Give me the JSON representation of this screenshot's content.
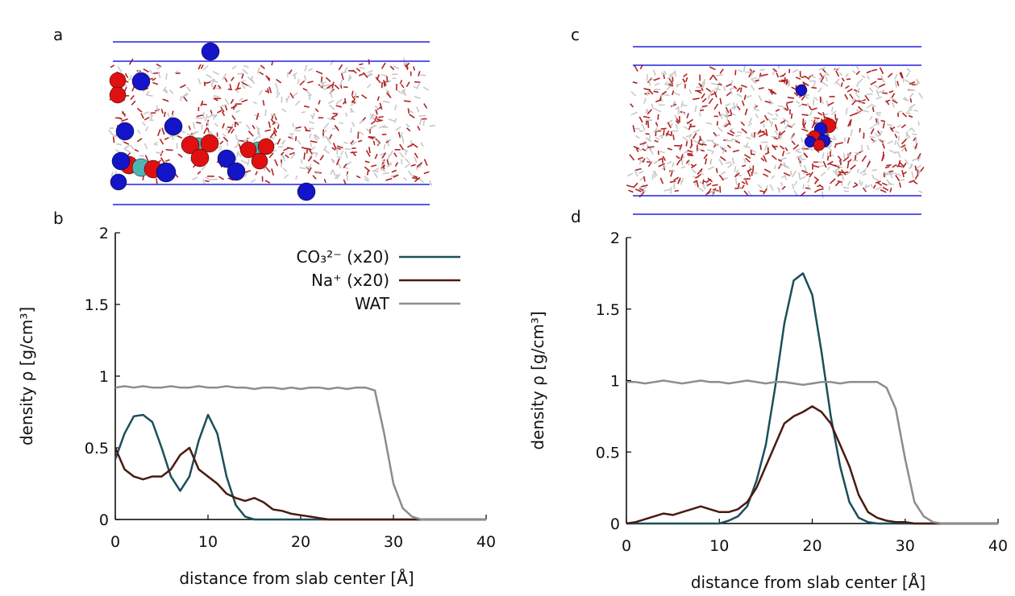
{
  "panel_labels": [
    "a",
    "b",
    "c",
    "d"
  ],
  "chart_data": [
    {
      "type": "line",
      "xlabel": "distance from slab center [Å]",
      "ylabel": "density ρ [g/cm³]",
      "xlim": [
        0,
        40
      ],
      "xticks": [
        0,
        10,
        20,
        30,
        40
      ],
      "ylim": [
        0,
        2
      ],
      "yticks": [
        0,
        0.5,
        1,
        1.5,
        2
      ],
      "x": [
        0,
        1,
        2,
        3,
        4,
        5,
        6,
        7,
        8,
        9,
        10,
        11,
        12,
        13,
        14,
        15,
        16,
        17,
        18,
        19,
        20,
        21,
        22,
        23,
        24,
        25,
        26,
        27,
        28,
        29,
        30,
        31,
        32,
        33,
        34,
        35,
        36,
        37,
        38,
        39,
        40
      ],
      "series": [
        {
          "name": "CO₃²⁻ (x20)",
          "color": "#1b4f5a",
          "values": [
            0.42,
            0.6,
            0.72,
            0.73,
            0.68,
            0.5,
            0.3,
            0.2,
            0.3,
            0.55,
            0.73,
            0.6,
            0.3,
            0.1,
            0.02,
            0,
            0,
            0,
            0,
            0,
            0,
            0,
            0,
            0,
            0,
            0,
            0,
            0,
            0,
            0,
            0,
            0,
            0,
            0,
            0,
            0,
            0,
            0,
            0,
            0,
            0
          ]
        },
        {
          "name": "Na⁺ (x20)",
          "color": "#4a1a10",
          "values": [
            0.5,
            0.35,
            0.3,
            0.28,
            0.3,
            0.3,
            0.35,
            0.45,
            0.5,
            0.35,
            0.3,
            0.25,
            0.18,
            0.15,
            0.13,
            0.15,
            0.12,
            0.07,
            0.06,
            0.04,
            0.03,
            0.02,
            0.01,
            0,
            0,
            0,
            0,
            0,
            0,
            0,
            0,
            0,
            0,
            0,
            0,
            0,
            0,
            0,
            0,
            0,
            0
          ]
        },
        {
          "name": "WAT",
          "color": "#8c8c8c",
          "values": [
            0.92,
            0.93,
            0.92,
            0.93,
            0.92,
            0.92,
            0.93,
            0.92,
            0.92,
            0.93,
            0.92,
            0.92,
            0.93,
            0.92,
            0.92,
            0.91,
            0.92,
            0.92,
            0.91,
            0.92,
            0.91,
            0.92,
            0.92,
            0.91,
            0.92,
            0.91,
            0.92,
            0.92,
            0.9,
            0.6,
            0.25,
            0.08,
            0.02,
            0,
            0,
            0,
            0,
            0,
            0,
            0,
            0
          ]
        }
      ]
    },
    {
      "type": "line",
      "xlabel": "distance from slab center [Å]",
      "ylabel": "density ρ [g/cm³]",
      "xlim": [
        0,
        40
      ],
      "xticks": [
        0,
        10,
        20,
        30,
        40
      ],
      "ylim": [
        0,
        2
      ],
      "yticks": [
        0,
        0.5,
        1,
        1.5,
        2
      ],
      "x": [
        0,
        1,
        2,
        3,
        4,
        5,
        6,
        7,
        8,
        9,
        10,
        11,
        12,
        13,
        14,
        15,
        16,
        17,
        18,
        19,
        20,
        21,
        22,
        23,
        24,
        25,
        26,
        27,
        28,
        29,
        30,
        31,
        32,
        33,
        34,
        35,
        36,
        37,
        38,
        39,
        40
      ],
      "series": [
        {
          "color": "#1b4f5a",
          "values": [
            0,
            0,
            0,
            0,
            0,
            0,
            0,
            0,
            0,
            0,
            0,
            0.02,
            0.05,
            0.12,
            0.3,
            0.55,
            0.95,
            1.4,
            1.7,
            1.75,
            1.6,
            1.2,
            0.75,
            0.4,
            0.15,
            0.04,
            0.01,
            0,
            0,
            0,
            0,
            0,
            0,
            0,
            0,
            0,
            0,
            0,
            0,
            0,
            0
          ]
        },
        {
          "color": "#4a1a10",
          "values": [
            0,
            0.01,
            0.03,
            0.05,
            0.07,
            0.06,
            0.08,
            0.1,
            0.12,
            0.1,
            0.08,
            0.08,
            0.1,
            0.15,
            0.25,
            0.4,
            0.55,
            0.7,
            0.75,
            0.78,
            0.82,
            0.78,
            0.7,
            0.55,
            0.4,
            0.2,
            0.08,
            0.04,
            0.02,
            0.01,
            0.01,
            0,
            0,
            0,
            0,
            0,
            0,
            0,
            0,
            0,
            0
          ]
        },
        {
          "color": "#8c8c8c",
          "values": [
            0.99,
            0.99,
            0.98,
            0.99,
            1,
            0.99,
            0.98,
            0.99,
            1,
            0.99,
            0.99,
            0.98,
            0.99,
            1,
            0.99,
            0.98,
            0.99,
            0.99,
            0.98,
            0.97,
            0.98,
            0.99,
            0.99,
            0.98,
            0.99,
            0.99,
            0.99,
            0.99,
            0.95,
            0.8,
            0.45,
            0.15,
            0.05,
            0.01,
            0,
            0,
            0,
            0,
            0,
            0,
            0
          ]
        }
      ]
    }
  ]
}
